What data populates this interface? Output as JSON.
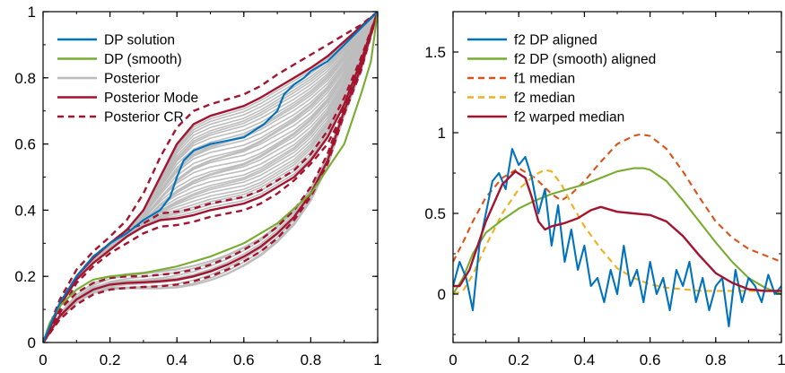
{
  "chart_data": [
    {
      "type": "line",
      "title": "",
      "xlabel": "",
      "ylabel": "",
      "xlim": [
        0,
        1
      ],
      "ylim": [
        0,
        1
      ],
      "xticks": [
        "0",
        "0.2",
        "0.4",
        "0.6",
        "0.8",
        "1"
      ],
      "yticks": [
        "0",
        "0.2",
        "0.4",
        "0.6",
        "0.8",
        "1"
      ],
      "legend_position": "top-left",
      "legend": [
        "DP solution",
        "DP (smooth)",
        "Posterior",
        "Posterior Mode",
        "Posterior CR"
      ],
      "series": [
        {
          "name": "DP solution",
          "color": "#0072BD",
          "style": "solid",
          "x": [
            0,
            0.02,
            0.05,
            0.1,
            0.15,
            0.2,
            0.25,
            0.3,
            0.35,
            0.38,
            0.4,
            0.42,
            0.45,
            0.5,
            0.55,
            0.6,
            0.63,
            0.66,
            0.7,
            0.72,
            0.75,
            0.78,
            0.8,
            0.85,
            0.9,
            0.95,
            1
          ],
          "y": [
            0,
            0.05,
            0.12,
            0.2,
            0.26,
            0.3,
            0.33,
            0.37,
            0.4,
            0.44,
            0.5,
            0.55,
            0.58,
            0.6,
            0.61,
            0.62,
            0.64,
            0.66,
            0.7,
            0.75,
            0.78,
            0.8,
            0.82,
            0.85,
            0.9,
            0.95,
            1
          ]
        },
        {
          "name": "DP (smooth)",
          "color": "#77AC30",
          "style": "solid",
          "family": "lower",
          "x": [
            0,
            0.02,
            0.05,
            0.1,
            0.15,
            0.2,
            0.3,
            0.4,
            0.5,
            0.6,
            0.7,
            0.8,
            0.9,
            0.95,
            0.98,
            1
          ],
          "y": [
            0,
            0.06,
            0.11,
            0.16,
            0.19,
            0.2,
            0.21,
            0.23,
            0.26,
            0.3,
            0.36,
            0.45,
            0.6,
            0.75,
            0.85,
            1
          ]
        },
        {
          "name": "Posterior Mode",
          "color": "#A2142F",
          "style": "solid",
          "x": [
            0,
            0.05,
            0.1,
            0.15,
            0.2,
            0.25,
            0.3,
            0.35,
            0.4,
            0.45,
            0.5,
            0.55,
            0.6,
            0.65,
            0.7,
            0.75,
            0.8,
            0.85,
            0.9,
            0.95,
            1
          ],
          "y": [
            0,
            0.11,
            0.2,
            0.255,
            0.3,
            0.34,
            0.4,
            0.5,
            0.6,
            0.66,
            0.685,
            0.7,
            0.715,
            0.74,
            0.77,
            0.8,
            0.83,
            0.865,
            0.91,
            0.955,
            1
          ]
        },
        {
          "name": "Posterior Mode",
          "color": "#A2142F",
          "style": "solid",
          "x": [
            0,
            0.05,
            0.1,
            0.15,
            0.2,
            0.25,
            0.3,
            0.35,
            0.4,
            0.45,
            0.5,
            0.55,
            0.6,
            0.65,
            0.7,
            0.75,
            0.8,
            0.85,
            0.9,
            0.95,
            1
          ],
          "y": [
            0,
            0.11,
            0.19,
            0.24,
            0.28,
            0.32,
            0.35,
            0.37,
            0.375,
            0.385,
            0.4,
            0.41,
            0.42,
            0.44,
            0.47,
            0.5,
            0.55,
            0.62,
            0.72,
            0.85,
            1
          ]
        },
        {
          "name": "Posterior Mode",
          "color": "#A2142F",
          "style": "solid",
          "x": [
            0,
            0.05,
            0.1,
            0.15,
            0.2,
            0.25,
            0.3,
            0.35,
            0.4,
            0.45,
            0.5,
            0.55,
            0.6,
            0.65,
            0.7,
            0.75,
            0.8,
            0.85,
            0.9,
            0.95,
            1
          ],
          "y": [
            0,
            0.08,
            0.13,
            0.16,
            0.175,
            0.18,
            0.182,
            0.185,
            0.19,
            0.2,
            0.215,
            0.235,
            0.26,
            0.29,
            0.33,
            0.38,
            0.45,
            0.55,
            0.7,
            0.83,
            1
          ]
        },
        {
          "name": "Posterior CR",
          "color": "#A2142F",
          "style": "dashed",
          "x": [
            0,
            0.05,
            0.1,
            0.15,
            0.2,
            0.25,
            0.3,
            0.35,
            0.4,
            0.45,
            0.5,
            0.55,
            0.6,
            0.65,
            0.7,
            0.75,
            0.8,
            0.85,
            0.9,
            0.95,
            1
          ],
          "y": [
            0,
            0.13,
            0.22,
            0.275,
            0.32,
            0.37,
            0.45,
            0.56,
            0.65,
            0.7,
            0.72,
            0.735,
            0.75,
            0.775,
            0.81,
            0.84,
            0.87,
            0.9,
            0.93,
            0.96,
            1
          ]
        },
        {
          "name": "Posterior CR",
          "color": "#A2142F",
          "style": "dashed",
          "x": [
            0,
            0.05,
            0.1,
            0.15,
            0.2,
            0.25,
            0.3,
            0.35,
            0.4,
            0.45,
            0.5,
            0.55,
            0.6,
            0.65,
            0.7,
            0.75,
            0.8,
            0.85,
            0.9,
            0.95,
            1
          ],
          "y": [
            0,
            0.09,
            0.18,
            0.23,
            0.27,
            0.3,
            0.33,
            0.35,
            0.355,
            0.365,
            0.38,
            0.39,
            0.4,
            0.42,
            0.45,
            0.49,
            0.54,
            0.6,
            0.7,
            0.84,
            1
          ]
        },
        {
          "name": "Posterior CR",
          "color": "#A2142F",
          "style": "dashed",
          "x": [
            0,
            0.05,
            0.1,
            0.15,
            0.2,
            0.25,
            0.3,
            0.35,
            0.4,
            0.45,
            0.5,
            0.55,
            0.6,
            0.65,
            0.7,
            0.75,
            0.8,
            0.85,
            0.9,
            0.95,
            1
          ],
          "y": [
            0,
            0.1,
            0.15,
            0.18,
            0.195,
            0.2,
            0.2,
            0.205,
            0.21,
            0.22,
            0.235,
            0.255,
            0.28,
            0.31,
            0.35,
            0.4,
            0.47,
            0.57,
            0.71,
            0.84,
            1
          ]
        },
        {
          "name": "Posterior CR",
          "color": "#A2142F",
          "style": "dashed",
          "x": [
            0,
            0.05,
            0.1,
            0.15,
            0.2,
            0.25,
            0.3,
            0.35,
            0.4,
            0.45,
            0.5,
            0.55,
            0.6,
            0.65,
            0.7,
            0.75,
            0.8,
            0.85,
            0.9,
            0.95,
            1
          ],
          "y": [
            0,
            0.07,
            0.115,
            0.145,
            0.16,
            0.165,
            0.168,
            0.17,
            0.175,
            0.185,
            0.2,
            0.22,
            0.245,
            0.275,
            0.315,
            0.37,
            0.44,
            0.54,
            0.69,
            0.82,
            1
          ]
        },
        {
          "name": "Posterior CR",
          "color": "#A2142F",
          "style": "dashed",
          "x": [
            0,
            0.05,
            0.1,
            0.15,
            0.2,
            0.25,
            0.3,
            0.35,
            0.4,
            0.45,
            0.5,
            0.55,
            0.6,
            0.65,
            0.7,
            0.75,
            0.8,
            0.85,
            0.9,
            0.95,
            1
          ],
          "y": [
            0,
            0.12,
            0.2,
            0.26,
            0.3,
            0.34,
            0.36,
            0.39,
            0.395,
            0.405,
            0.42,
            0.43,
            0.44,
            0.46,
            0.49,
            0.52,
            0.57,
            0.64,
            0.74,
            0.86,
            1
          ]
        }
      ]
    },
    {
      "type": "line",
      "title": "",
      "xlabel": "",
      "ylabel": "",
      "xlim": [
        0,
        1
      ],
      "ylim": [
        -0.3,
        1.75
      ],
      "xticks": [
        "0",
        "0.2",
        "0.4",
        "0.6",
        "0.8",
        "1"
      ],
      "yticks": [
        "0",
        "0.5",
        "1",
        "1.5"
      ],
      "legend_position": "top-left",
      "legend": [
        "f2 DP aligned",
        "f2 DP (smooth) aligned",
        "f1 median",
        "f2 median",
        "f2 warped median"
      ],
      "series": [
        {
          "name": "f2 DP aligned",
          "color": "#0072BD",
          "style": "solid",
          "x": [
            0,
            0.02,
            0.04,
            0.06,
            0.08,
            0.1,
            0.12,
            0.14,
            0.16,
            0.18,
            0.2,
            0.22,
            0.24,
            0.26,
            0.28,
            0.3,
            0.32,
            0.34,
            0.36,
            0.38,
            0.4,
            0.42,
            0.44,
            0.46,
            0.48,
            0.5,
            0.52,
            0.54,
            0.56,
            0.58,
            0.6,
            0.62,
            0.64,
            0.66,
            0.68,
            0.7,
            0.72,
            0.74,
            0.76,
            0.78,
            0.8,
            0.82,
            0.84,
            0.86,
            0.88,
            0.9,
            0.92,
            0.94,
            0.96,
            0.98,
            1
          ],
          "y": [
            0.05,
            0.2,
            0.1,
            -0.1,
            0.3,
            0.5,
            0.7,
            0.75,
            0.65,
            0.9,
            0.8,
            0.85,
            0.72,
            0.5,
            0.65,
            0.3,
            0.55,
            0.2,
            0.4,
            0.15,
            0.3,
            0.05,
            0.1,
            -0.05,
            0.15,
            0.0,
            0.3,
            0.05,
            0.15,
            -0.05,
            0.2,
            0.0,
            0.1,
            -0.1,
            0.15,
            0.05,
            0.2,
            -0.05,
            0.1,
            -0.1,
            0.05,
            0.1,
            -0.2,
            0.15,
            -0.05,
            0.1,
            0.05,
            -0.05,
            0.12,
            0.0,
            0.05
          ]
        },
        {
          "name": "f2 DP (smooth) aligned",
          "color": "#77AC30",
          "style": "solid",
          "x": [
            0,
            0.03,
            0.06,
            0.1,
            0.15,
            0.2,
            0.25,
            0.3,
            0.35,
            0.4,
            0.45,
            0.5,
            0.55,
            0.58,
            0.6,
            0.65,
            0.7,
            0.75,
            0.8,
            0.85,
            0.9,
            0.95,
            1
          ],
          "y": [
            0.0,
            0.1,
            0.25,
            0.38,
            0.46,
            0.53,
            0.58,
            0.62,
            0.65,
            0.68,
            0.72,
            0.76,
            0.78,
            0.78,
            0.77,
            0.7,
            0.58,
            0.45,
            0.32,
            0.2,
            0.1,
            0.04,
            0.0
          ]
        },
        {
          "name": "f1 median",
          "color": "#D95319",
          "style": "dashed",
          "x": [
            0,
            0.03,
            0.06,
            0.1,
            0.15,
            0.2,
            0.25,
            0.3,
            0.33,
            0.36,
            0.4,
            0.45,
            0.5,
            0.55,
            0.57,
            0.6,
            0.65,
            0.7,
            0.75,
            0.8,
            0.85,
            0.9,
            0.95,
            1
          ],
          "y": [
            0.2,
            0.32,
            0.45,
            0.6,
            0.72,
            0.78,
            0.72,
            0.62,
            0.58,
            0.62,
            0.7,
            0.82,
            0.93,
            0.98,
            0.99,
            0.98,
            0.9,
            0.76,
            0.6,
            0.45,
            0.35,
            0.28,
            0.24,
            0.2
          ]
        },
        {
          "name": "f2 median",
          "color": "#EDB120",
          "style": "dashed",
          "x": [
            0,
            0.03,
            0.06,
            0.1,
            0.15,
            0.2,
            0.25,
            0.28,
            0.3,
            0.33,
            0.36,
            0.4,
            0.45,
            0.5,
            0.55,
            0.6,
            0.65,
            0.7,
            0.75,
            0.8,
            0.85,
            0.9,
            0.95,
            1
          ],
          "y": [
            0.0,
            0.02,
            0.12,
            0.3,
            0.5,
            0.65,
            0.74,
            0.77,
            0.76,
            0.68,
            0.56,
            0.42,
            0.28,
            0.16,
            0.1,
            0.06,
            0.04,
            0.03,
            0.02,
            0.02,
            0.02,
            0.02,
            0.02,
            0.02
          ]
        },
        {
          "name": "f2 warped median",
          "color": "#A2142F",
          "style": "solid",
          "x": [
            0,
            0.02,
            0.05,
            0.1,
            0.15,
            0.19,
            0.22,
            0.24,
            0.26,
            0.28,
            0.3,
            0.34,
            0.38,
            0.42,
            0.45,
            0.5,
            0.55,
            0.6,
            0.65,
            0.7,
            0.75,
            0.8,
            0.85,
            0.9,
            0.95,
            1
          ],
          "y": [
            0.05,
            0.05,
            0.15,
            0.45,
            0.68,
            0.76,
            0.72,
            0.6,
            0.45,
            0.4,
            0.42,
            0.44,
            0.47,
            0.52,
            0.54,
            0.51,
            0.5,
            0.49,
            0.45,
            0.36,
            0.24,
            0.13,
            0.07,
            0.03,
            0.02,
            0.02
          ]
        }
      ]
    }
  ]
}
